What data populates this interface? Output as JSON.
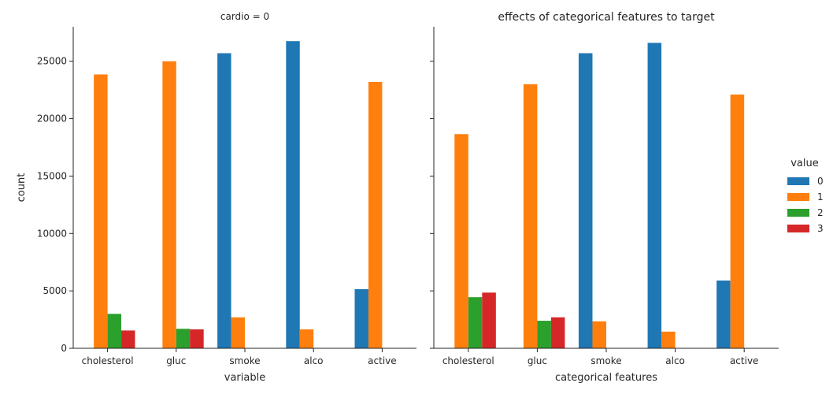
{
  "chart_data": {
    "type": "bar",
    "categories": [
      "cholesterol",
      "gluc",
      "smoke",
      "alco",
      "active"
    ],
    "ylabel": "count",
    "ylim": [
      0,
      28000
    ],
    "yticks": [
      0,
      5000,
      10000,
      15000,
      20000,
      25000
    ],
    "grid": false,
    "legend": {
      "title": "value",
      "placement": "right",
      "entries": [
        "0",
        "1",
        "2",
        "3"
      ]
    },
    "colors": [
      "#1f77b4",
      "#ff7f0e",
      "#2ca02c",
      "#d62728"
    ],
    "panels": [
      {
        "title": "cardio = 0",
        "xlabel": "variable",
        "series": [
          {
            "name": "0",
            "values": [
              null,
              null,
              25700,
              26750,
              5150
            ]
          },
          {
            "name": "1",
            "values": [
              23850,
              25000,
              2700,
              1650,
              23200
            ]
          },
          {
            "name": "2",
            "values": [
              3000,
              1700,
              null,
              null,
              null
            ]
          },
          {
            "name": "3",
            "values": [
              1550,
              1650,
              null,
              null,
              null
            ]
          }
        ]
      },
      {
        "title": "effects of categorical features to target",
        "xlabel": "categorical features",
        "series": [
          {
            "name": "0",
            "values": [
              null,
              null,
              25700,
              26600,
              5900
            ]
          },
          {
            "name": "1",
            "values": [
              18650,
              23000,
              2350,
              1450,
              22100
            ]
          },
          {
            "name": "2",
            "values": [
              4450,
              2400,
              null,
              null,
              null
            ]
          },
          {
            "name": "3",
            "values": [
              4850,
              2700,
              null,
              null,
              null
            ]
          }
        ]
      }
    ]
  }
}
